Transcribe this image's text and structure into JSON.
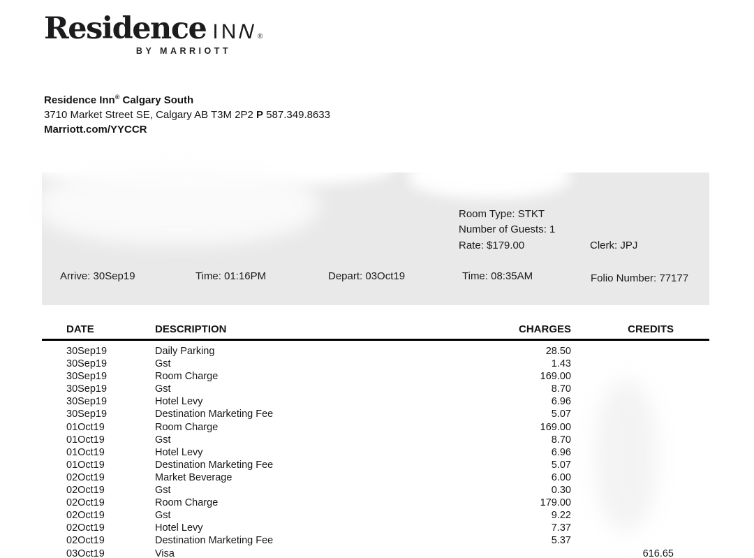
{
  "brand": {
    "logo_main": "Residence",
    "logo_inn_start": "IN",
    "logo_inn_end": "N",
    "logo_reg": "®",
    "logo_sub": "BY MARRIOTT"
  },
  "hotel": {
    "name": "Residence Inn",
    "name_reg": "®",
    "location": " Calgary South",
    "address": "3710 Market Street SE, Calgary AB T3M 2P2",
    "phone_label": "P",
    "phone": "587.349.8633",
    "website": "Marriott.com/YYCCR"
  },
  "stay": {
    "room_type": "Room Type: STKT",
    "guests": "Number of Guests: 1",
    "rate": "Rate: $179.00",
    "clerk": "Clerk: JPJ",
    "arrive": "Arrive: 30Sep19",
    "arrive_time": "Time: 01:16PM",
    "depart": "Depart: 03Oct19",
    "depart_time": "Time: 08:35AM",
    "folio": "Folio Number: 77177"
  },
  "table": {
    "headers": {
      "date": "DATE",
      "description": "DESCRIPTION",
      "charges": "CHARGES",
      "credits": "CREDITS"
    },
    "rows": [
      {
        "date": "30Sep19",
        "description": "Daily Parking",
        "charge": "28.50",
        "credit": ""
      },
      {
        "date": "30Sep19",
        "description": "Gst",
        "charge": "1.43",
        "credit": ""
      },
      {
        "date": "30Sep19",
        "description": "Room Charge",
        "charge": "169.00",
        "credit": ""
      },
      {
        "date": "30Sep19",
        "description": "Gst",
        "charge": "8.70",
        "credit": ""
      },
      {
        "date": "30Sep19",
        "description": "Hotel Levy",
        "charge": "6.96",
        "credit": ""
      },
      {
        "date": "30Sep19",
        "description": "Destination Marketing Fee",
        "charge": "5.07",
        "credit": ""
      },
      {
        "date": "01Oct19",
        "description": "Room Charge",
        "charge": "169.00",
        "credit": ""
      },
      {
        "date": "01Oct19",
        "description": "Gst",
        "charge": "8.70",
        "credit": ""
      },
      {
        "date": "01Oct19",
        "description": "Hotel Levy",
        "charge": "6.96",
        "credit": ""
      },
      {
        "date": "01Oct19",
        "description": "Destination Marketing Fee",
        "charge": "5.07",
        "credit": ""
      },
      {
        "date": "02Oct19",
        "description": "Market Beverage",
        "charge": "6.00",
        "credit": ""
      },
      {
        "date": "02Oct19",
        "description": "Gst",
        "charge": "0.30",
        "credit": ""
      },
      {
        "date": "02Oct19",
        "description": "Room Charge",
        "charge": "179.00",
        "credit": ""
      },
      {
        "date": "02Oct19",
        "description": "Gst",
        "charge": "9.22",
        "credit": ""
      },
      {
        "date": "02Oct19",
        "description": "Hotel Levy",
        "charge": "7.37",
        "credit": ""
      },
      {
        "date": "02Oct19",
        "description": "Destination Marketing Fee",
        "charge": "5.37",
        "credit": ""
      },
      {
        "date": "03Oct19",
        "description": "Visa",
        "charge": "",
        "credit": "616.65"
      }
    ]
  },
  "colors": {
    "info_box_bg": "#e9e9e9",
    "text": "#141414",
    "rule": "#000000"
  }
}
